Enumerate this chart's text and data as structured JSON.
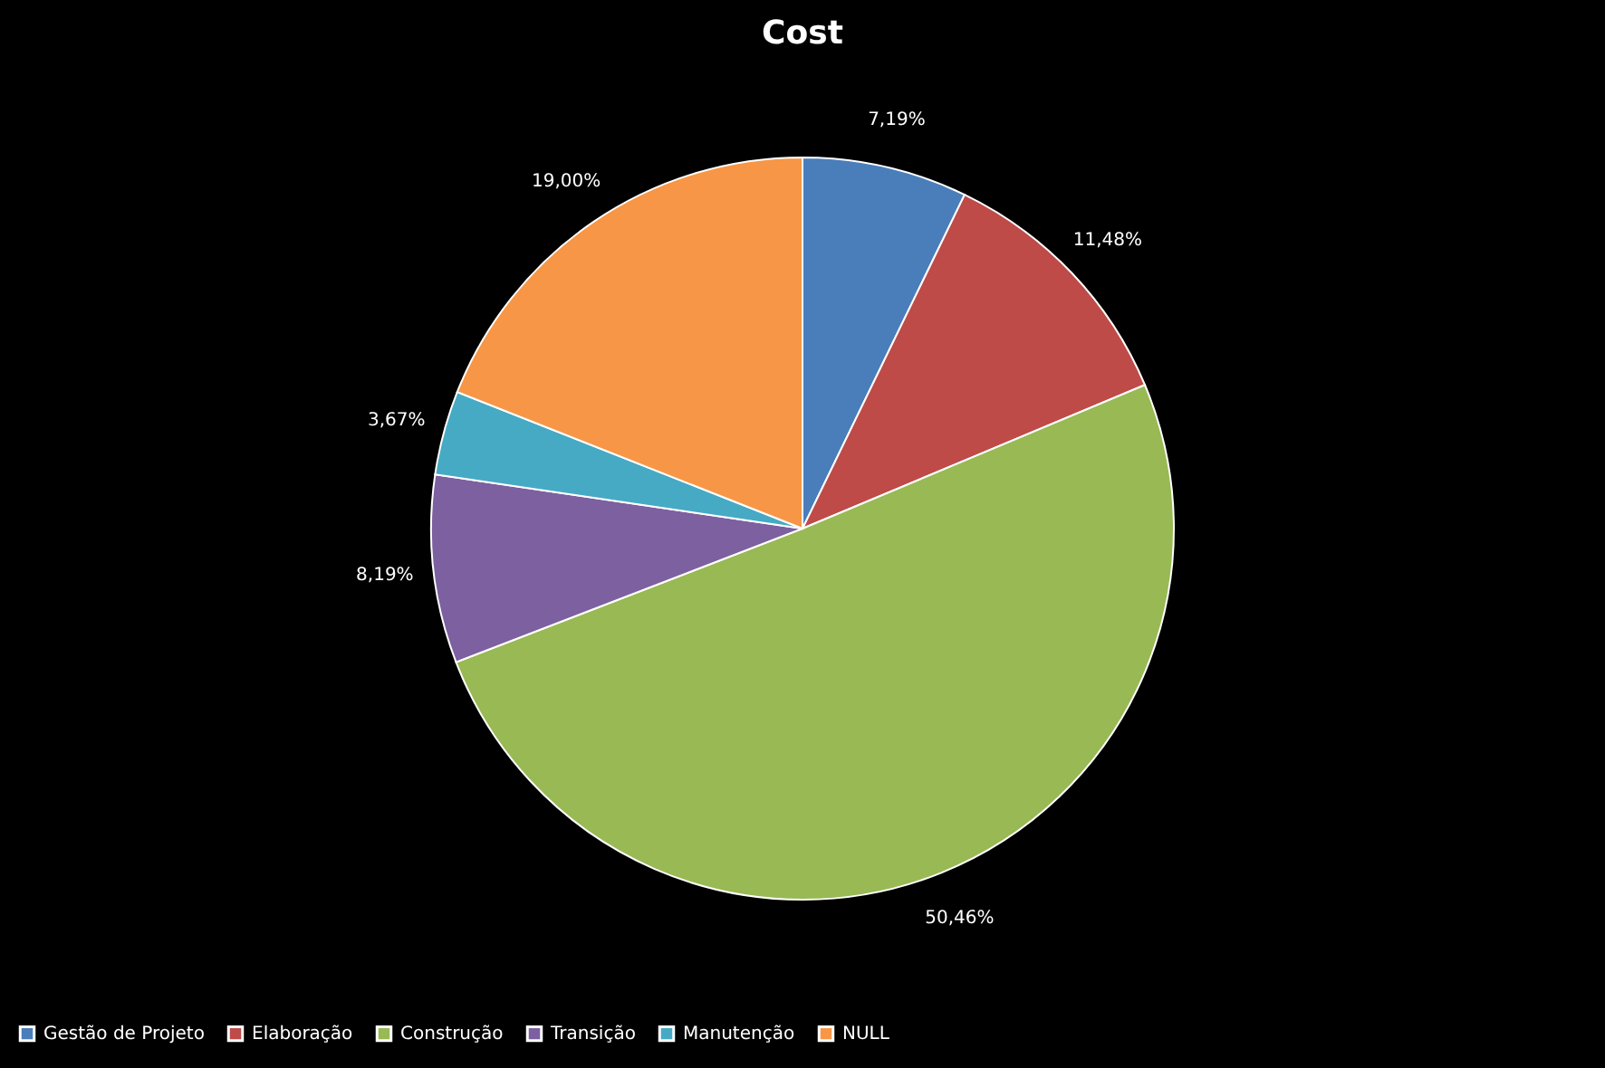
{
  "chart_data": {
    "type": "pie",
    "title": "Cost",
    "categories": [
      "Gestão de Projeto",
      "Elaboração",
      "Construção",
      "Transição",
      "Manutenção",
      "NULL"
    ],
    "values": [
      7.19,
      11.48,
      50.46,
      8.19,
      3.67,
      19.0
    ],
    "colors": [
      "#4a7ebb",
      "#be4b48",
      "#98b954",
      "#7d60a0",
      "#46aac5",
      "#f79646"
    ],
    "value_labels": [
      "7,19%",
      "11,48%",
      "50,46%",
      "8,19%",
      "3,67%",
      "19,00%"
    ],
    "legend": "bottom"
  }
}
